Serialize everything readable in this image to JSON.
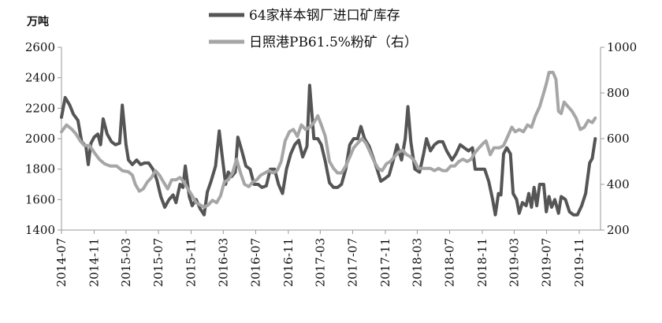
{
  "chart_data": {
    "type": "line",
    "y_unit_left": "万吨",
    "y_left": {
      "min": 1400,
      "max": 2600,
      "ticks": [
        1400,
        1600,
        1800,
        2000,
        2200,
        2400,
        2600
      ]
    },
    "y_right": {
      "min": 200,
      "max": 1000,
      "ticks": [
        200,
        400,
        600,
        800,
        1000
      ]
    },
    "x_range": [
      "2014-07-01",
      "2020-01-20"
    ],
    "x_tick_labels": [
      "2014-07",
      "2014-11",
      "2015-03",
      "2015-07",
      "2015-11",
      "2016-03",
      "2016-07",
      "2016-11",
      "2017-03",
      "2017-07",
      "2017-11",
      "2018-03",
      "2018-07",
      "2018-11",
      "2019-03",
      "2019-07",
      "2019-11"
    ],
    "legend_position": "top-center",
    "series": [
      {
        "name": "64家样本钢厂进口矿库存",
        "axis": "left",
        "color": "#555555",
        "points": [
          [
            "2014-07-01",
            2140
          ],
          [
            "2014-07-15",
            2270
          ],
          [
            "2014-08-01",
            2220
          ],
          [
            "2014-08-15",
            2160
          ],
          [
            "2014-09-01",
            2120
          ],
          [
            "2014-09-15",
            1980
          ],
          [
            "2014-10-01",
            1950
          ],
          [
            "2014-10-10",
            1830
          ],
          [
            "2014-10-20",
            1970
          ],
          [
            "2014-11-01",
            2010
          ],
          [
            "2014-11-15",
            2030
          ],
          [
            "2014-11-25",
            1960
          ],
          [
            "2014-12-05",
            2130
          ],
          [
            "2014-12-20",
            2030
          ],
          [
            "2015-01-05",
            1980
          ],
          [
            "2015-01-20",
            1960
          ],
          [
            "2015-02-05",
            1970
          ],
          [
            "2015-02-15",
            2220
          ],
          [
            "2015-03-01",
            1960
          ],
          [
            "2015-03-10",
            1860
          ],
          [
            "2015-03-25",
            1830
          ],
          [
            "2015-04-10",
            1860
          ],
          [
            "2015-04-25",
            1830
          ],
          [
            "2015-05-10",
            1840
          ],
          [
            "2015-05-25",
            1840
          ],
          [
            "2015-06-10",
            1800
          ],
          [
            "2015-06-25",
            1730
          ],
          [
            "2015-07-10",
            1620
          ],
          [
            "2015-07-25",
            1550
          ],
          [
            "2015-08-10",
            1600
          ],
          [
            "2015-08-25",
            1630
          ],
          [
            "2015-09-05",
            1580
          ],
          [
            "2015-09-20",
            1700
          ],
          [
            "2015-10-01",
            1680
          ],
          [
            "2015-10-10",
            1820
          ],
          [
            "2015-10-25",
            1620
          ],
          [
            "2015-11-05",
            1560
          ],
          [
            "2015-11-20",
            1600
          ],
          [
            "2015-12-05",
            1540
          ],
          [
            "2015-12-20",
            1500
          ],
          [
            "2016-01-01",
            1650
          ],
          [
            "2016-01-15",
            1720
          ],
          [
            "2016-02-01",
            1820
          ],
          [
            "2016-02-15",
            2050
          ],
          [
            "2016-02-25",
            1900
          ],
          [
            "2016-03-10",
            1700
          ],
          [
            "2016-03-20",
            1780
          ],
          [
            "2016-04-01",
            1750
          ],
          [
            "2016-04-15",
            1780
          ],
          [
            "2016-04-25",
            2010
          ],
          [
            "2016-05-10",
            1920
          ],
          [
            "2016-05-25",
            1820
          ],
          [
            "2016-06-10",
            1800
          ],
          [
            "2016-06-25",
            1700
          ],
          [
            "2016-07-10",
            1700
          ],
          [
            "2016-07-25",
            1680
          ],
          [
            "2016-08-10",
            1690
          ],
          [
            "2016-08-25",
            1800
          ],
          [
            "2016-09-10",
            1800
          ],
          [
            "2016-09-25",
            1700
          ],
          [
            "2016-10-10",
            1640
          ],
          [
            "2016-10-25",
            1800
          ],
          [
            "2016-11-10",
            1900
          ],
          [
            "2016-11-25",
            1960
          ],
          [
            "2016-12-10",
            1990
          ],
          [
            "2016-12-25",
            1880
          ],
          [
            "2017-01-10",
            1950
          ],
          [
            "2017-01-20",
            2350
          ],
          [
            "2017-02-05",
            2000
          ],
          [
            "2017-02-20",
            2000
          ],
          [
            "2017-03-05",
            1960
          ],
          [
            "2017-03-20",
            1850
          ],
          [
            "2017-04-05",
            1710
          ],
          [
            "2017-04-20",
            1680
          ],
          [
            "2017-05-05",
            1680
          ],
          [
            "2017-05-20",
            1700
          ],
          [
            "2017-06-05",
            1800
          ],
          [
            "2017-06-20",
            1960
          ],
          [
            "2017-07-05",
            2000
          ],
          [
            "2017-07-20",
            2000
          ],
          [
            "2017-08-01",
            2080
          ],
          [
            "2017-08-15",
            2000
          ],
          [
            "2017-09-01",
            1950
          ],
          [
            "2017-09-15",
            1880
          ],
          [
            "2017-10-01",
            1800
          ],
          [
            "2017-10-15",
            1720
          ],
          [
            "2017-11-01",
            1740
          ],
          [
            "2017-11-15",
            1760
          ],
          [
            "2017-12-01",
            1860
          ],
          [
            "2017-12-15",
            1960
          ],
          [
            "2018-01-01",
            1860
          ],
          [
            "2018-01-15",
            2000
          ],
          [
            "2018-01-25",
            2210
          ],
          [
            "2018-02-05",
            1980
          ],
          [
            "2018-02-20",
            1800
          ],
          [
            "2018-03-10",
            1780
          ],
          [
            "2018-03-25",
            1900
          ],
          [
            "2018-04-05",
            2000
          ],
          [
            "2018-04-20",
            1920
          ],
          [
            "2018-05-05",
            1960
          ],
          [
            "2018-05-20",
            1980
          ],
          [
            "2018-06-05",
            1980
          ],
          [
            "2018-06-20",
            1920
          ],
          [
            "2018-07-10",
            1860
          ],
          [
            "2018-07-25",
            1900
          ],
          [
            "2018-08-10",
            1960
          ],
          [
            "2018-08-25",
            1940
          ],
          [
            "2018-09-10",
            1920
          ],
          [
            "2018-09-25",
            1940
          ],
          [
            "2018-10-05",
            1800
          ],
          [
            "2018-10-25",
            1800
          ],
          [
            "2018-11-10",
            1800
          ],
          [
            "2018-11-25",
            1720
          ],
          [
            "2018-12-10",
            1600
          ],
          [
            "2018-12-20",
            1500
          ],
          [
            "2019-01-01",
            1640
          ],
          [
            "2019-01-10",
            1630
          ],
          [
            "2019-01-20",
            1900
          ],
          [
            "2019-02-01",
            1940
          ],
          [
            "2019-02-15",
            1900
          ],
          [
            "2019-02-25",
            1640
          ],
          [
            "2019-03-10",
            1600
          ],
          [
            "2019-03-20",
            1510
          ],
          [
            "2019-04-01",
            1580
          ],
          [
            "2019-04-15",
            1560
          ],
          [
            "2019-04-25",
            1640
          ],
          [
            "2019-05-05",
            1550
          ],
          [
            "2019-05-15",
            1680
          ],
          [
            "2019-05-25",
            1560
          ],
          [
            "2019-06-05",
            1700
          ],
          [
            "2019-06-20",
            1700
          ],
          [
            "2019-06-30",
            1520
          ],
          [
            "2019-07-10",
            1620
          ],
          [
            "2019-07-20",
            1550
          ],
          [
            "2019-08-01",
            1600
          ],
          [
            "2019-08-15",
            1510
          ],
          [
            "2019-08-25",
            1620
          ],
          [
            "2019-09-10",
            1600
          ],
          [
            "2019-09-25",
            1520
          ],
          [
            "2019-10-10",
            1500
          ],
          [
            "2019-10-25",
            1500
          ],
          [
            "2019-11-10",
            1560
          ],
          [
            "2019-11-25",
            1640
          ],
          [
            "2019-12-10",
            1840
          ],
          [
            "2019-12-20",
            1870
          ],
          [
            "2019-12-31",
            2000
          ]
        ]
      },
      {
        "name": "日照港PB61.5%粉矿（右）",
        "axis": "right",
        "color": "#a6a6a6",
        "points": [
          [
            "2014-07-01",
            630
          ],
          [
            "2014-07-20",
            660
          ],
          [
            "2014-08-10",
            640
          ],
          [
            "2014-08-25",
            620
          ],
          [
            "2014-09-10",
            590
          ],
          [
            "2014-09-25",
            570
          ],
          [
            "2014-10-15",
            570
          ],
          [
            "2014-11-01",
            540
          ],
          [
            "2014-11-20",
            510
          ],
          [
            "2014-12-10",
            490
          ],
          [
            "2015-01-01",
            480
          ],
          [
            "2015-01-25",
            480
          ],
          [
            "2015-02-15",
            460
          ],
          [
            "2015-03-10",
            455
          ],
          [
            "2015-03-25",
            440
          ],
          [
            "2015-04-05",
            400
          ],
          [
            "2015-04-20",
            370
          ],
          [
            "2015-05-05",
            380
          ],
          [
            "2015-05-20",
            410
          ],
          [
            "2015-06-05",
            430
          ],
          [
            "2015-06-20",
            460
          ],
          [
            "2015-07-05",
            440
          ],
          [
            "2015-07-20",
            410
          ],
          [
            "2015-08-05",
            380
          ],
          [
            "2015-08-20",
            420
          ],
          [
            "2015-09-05",
            420
          ],
          [
            "2015-09-20",
            430
          ],
          [
            "2015-10-05",
            410
          ],
          [
            "2015-10-20",
            380
          ],
          [
            "2015-11-05",
            350
          ],
          [
            "2015-11-20",
            320
          ],
          [
            "2015-12-05",
            310
          ],
          [
            "2015-12-20",
            300
          ],
          [
            "2016-01-05",
            310
          ],
          [
            "2016-01-20",
            330
          ],
          [
            "2016-02-05",
            320
          ],
          [
            "2016-02-20",
            350
          ],
          [
            "2016-03-05",
            410
          ],
          [
            "2016-03-20",
            420
          ],
          [
            "2016-04-05",
            450
          ],
          [
            "2016-04-20",
            510
          ],
          [
            "2016-05-05",
            450
          ],
          [
            "2016-05-20",
            400
          ],
          [
            "2016-06-05",
            390
          ],
          [
            "2016-06-20",
            410
          ],
          [
            "2016-07-05",
            420
          ],
          [
            "2016-07-20",
            440
          ],
          [
            "2016-08-05",
            450
          ],
          [
            "2016-08-20",
            460
          ],
          [
            "2016-09-05",
            450
          ],
          [
            "2016-09-20",
            460
          ],
          [
            "2016-10-05",
            500
          ],
          [
            "2016-10-20",
            590
          ],
          [
            "2016-11-05",
            630
          ],
          [
            "2016-11-20",
            640
          ],
          [
            "2016-12-05",
            610
          ],
          [
            "2016-12-20",
            660
          ],
          [
            "2017-01-05",
            640
          ],
          [
            "2017-01-20",
            650
          ],
          [
            "2017-02-05",
            670
          ],
          [
            "2017-02-20",
            700
          ],
          [
            "2017-03-05",
            660
          ],
          [
            "2017-03-20",
            610
          ],
          [
            "2017-04-05",
            500
          ],
          [
            "2017-04-20",
            470
          ],
          [
            "2017-05-05",
            450
          ],
          [
            "2017-05-20",
            450
          ],
          [
            "2017-06-05",
            480
          ],
          [
            "2017-06-20",
            520
          ],
          [
            "2017-07-05",
            560
          ],
          [
            "2017-07-20",
            580
          ],
          [
            "2017-08-05",
            600
          ],
          [
            "2017-08-20",
            580
          ],
          [
            "2017-09-05",
            540
          ],
          [
            "2017-09-20",
            500
          ],
          [
            "2017-10-05",
            470
          ],
          [
            "2017-10-20",
            460
          ],
          [
            "2017-11-05",
            490
          ],
          [
            "2017-11-20",
            500
          ],
          [
            "2017-12-05",
            520
          ],
          [
            "2017-12-20",
            540
          ],
          [
            "2018-01-05",
            550
          ],
          [
            "2018-01-20",
            530
          ],
          [
            "2018-02-05",
            520
          ],
          [
            "2018-02-20",
            500
          ],
          [
            "2018-03-05",
            470
          ],
          [
            "2018-03-20",
            470
          ],
          [
            "2018-04-05",
            470
          ],
          [
            "2018-04-20",
            470
          ],
          [
            "2018-05-05",
            460
          ],
          [
            "2018-05-20",
            470
          ],
          [
            "2018-06-05",
            460
          ],
          [
            "2018-06-20",
            460
          ],
          [
            "2018-07-05",
            480
          ],
          [
            "2018-07-20",
            480
          ],
          [
            "2018-08-05",
            500
          ],
          [
            "2018-08-20",
            510
          ],
          [
            "2018-09-05",
            500
          ],
          [
            "2018-09-20",
            510
          ],
          [
            "2018-10-05",
            540
          ],
          [
            "2018-10-20",
            560
          ],
          [
            "2018-11-05",
            580
          ],
          [
            "2018-11-15",
            590
          ],
          [
            "2018-12-01",
            530
          ],
          [
            "2018-12-15",
            560
          ],
          [
            "2019-01-05",
            560
          ],
          [
            "2019-01-20",
            570
          ],
          [
            "2019-02-05",
            610
          ],
          [
            "2019-02-20",
            650
          ],
          [
            "2019-03-05",
            630
          ],
          [
            "2019-03-20",
            640
          ],
          [
            "2019-04-05",
            630
          ],
          [
            "2019-04-20",
            660
          ],
          [
            "2019-05-05",
            650
          ],
          [
            "2019-05-20",
            700
          ],
          [
            "2019-06-05",
            740
          ],
          [
            "2019-06-20",
            800
          ],
          [
            "2019-06-30",
            840
          ],
          [
            "2019-07-10",
            890
          ],
          [
            "2019-07-25",
            890
          ],
          [
            "2019-08-05",
            860
          ],
          [
            "2019-08-15",
            720
          ],
          [
            "2019-08-25",
            710
          ],
          [
            "2019-09-05",
            760
          ],
          [
            "2019-09-20",
            740
          ],
          [
            "2019-10-05",
            720
          ],
          [
            "2019-10-20",
            690
          ],
          [
            "2019-11-05",
            640
          ],
          [
            "2019-11-20",
            650
          ],
          [
            "2019-12-05",
            680
          ],
          [
            "2019-12-20",
            670
          ],
          [
            "2019-12-31",
            690
          ]
        ]
      }
    ]
  }
}
